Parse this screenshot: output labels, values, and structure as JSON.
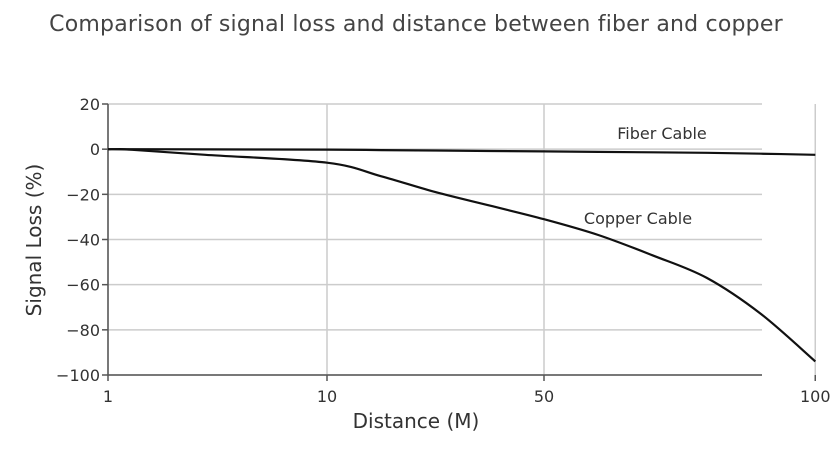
{
  "chart_data": {
    "type": "line",
    "title": "Comparison of signal loss and distance between fiber and copper",
    "xlabel": "Distance (M)",
    "ylabel": "Signal Loss (%)",
    "x_ticks": [
      1,
      10,
      50,
      100
    ],
    "y_ticks": [
      20,
      0,
      -20,
      -40,
      -60,
      -80,
      -100
    ],
    "y_tick_labels": [
      "20",
      "0",
      "−20",
      "−40",
      "−60",
      "−80",
      "−100"
    ],
    "ylim": [
      -100,
      20
    ],
    "grid": true,
    "series": [
      {
        "name": "Fiber Cable",
        "x": [
          1,
          2,
          5,
          10,
          20,
          30,
          40,
          50,
          60,
          70,
          80,
          90,
          100
        ],
        "y": [
          0,
          0,
          -0.1,
          -0.2,
          -0.4,
          -0.6,
          -0.8,
          -1.0,
          -1.2,
          -1.4,
          -1.6,
          -2.0,
          -2.5
        ]
      },
      {
        "name": "Copper Cable",
        "x": [
          1,
          2,
          5,
          10,
          20,
          30,
          40,
          50,
          60,
          70,
          80,
          90,
          100
        ],
        "y": [
          0,
          -0.3,
          -2.5,
          -6,
          -12,
          -19,
          -25,
          -31,
          -38,
          -47,
          -57,
          -73,
          -94
        ]
      }
    ]
  }
}
